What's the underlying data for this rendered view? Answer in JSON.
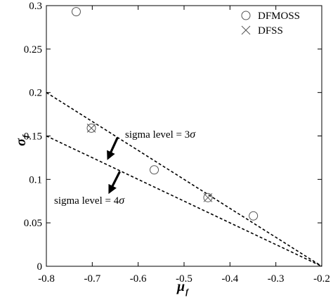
{
  "chart_data": {
    "type": "scatter",
    "xlabel": "μ",
    "xlabel_sub": "f",
    "ylabel": "σ",
    "ylabel_sub": "f",
    "xlim": [
      -0.8,
      -0.2
    ],
    "ylim": [
      0,
      0.3
    ],
    "xticks": [
      -0.8,
      -0.7,
      -0.6,
      -0.5,
      -0.4,
      -0.3,
      -0.2
    ],
    "xtick_labels": [
      "-0.8",
      "-0.7",
      "-0.6",
      "-0.5",
      "-0.4",
      "-0.3",
      "-0.2"
    ],
    "yticks": [
      0,
      0.05,
      0.1,
      0.15,
      0.2,
      0.25,
      0.3
    ],
    "ytick_labels": [
      "0",
      "0.05",
      "0.1",
      "0.15",
      "0.2",
      "0.25",
      "0.3"
    ],
    "grid": false,
    "legend_position": "top-right",
    "series": [
      {
        "name": "DFMOSS",
        "marker": "circle",
        "points": [
          [
            -0.735,
            0.293
          ],
          [
            -0.702,
            0.159
          ],
          [
            -0.565,
            0.111
          ],
          [
            -0.448,
            0.079
          ],
          [
            -0.349,
            0.058
          ]
        ]
      },
      {
        "name": "DFSS",
        "marker": "cross",
        "points": [
          [
            -0.702,
            0.159
          ],
          [
            -0.448,
            0.079
          ]
        ]
      }
    ],
    "lines": [
      {
        "style": "dashed",
        "points": [
          [
            -0.8,
            0.2
          ],
          [
            -0.2,
            0
          ]
        ]
      },
      {
        "style": "dashed",
        "points": [
          [
            -0.8,
            0.15
          ],
          [
            -0.2,
            0
          ]
        ]
      }
    ],
    "annotations": [
      {
        "text": "sigma level = 3",
        "symbol": "σ",
        "arrow_from": [
          -0.645,
          0.148
        ],
        "arrow_to": [
          -0.665,
          0.125
        ]
      },
      {
        "text": "sigma level = 4",
        "symbol": "σ",
        "arrow_from": [
          -0.64,
          0.109
        ],
        "arrow_to": [
          -0.662,
          0.086
        ]
      }
    ]
  }
}
